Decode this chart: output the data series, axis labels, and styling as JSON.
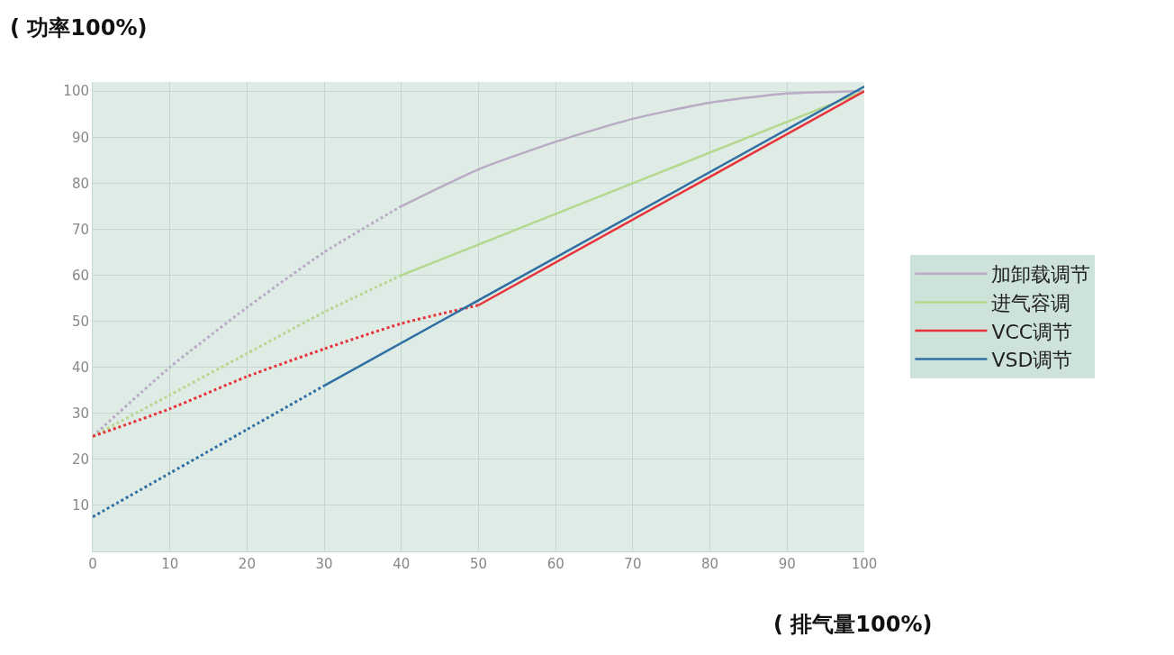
{
  "chart_data": {
    "type": "line",
    "xlabel": "( 排气量100%)",
    "ylabel": "( 功率100%)",
    "xlim": [
      0,
      100
    ],
    "ylim": [
      0,
      102
    ],
    "xticks": [
      0,
      10,
      20,
      30,
      40,
      50,
      60,
      70,
      80,
      90,
      100
    ],
    "yticks": [
      10,
      20,
      30,
      40,
      50,
      60,
      70,
      80,
      90,
      100
    ],
    "grid": true,
    "legend": "right",
    "marker": "none",
    "series": [
      {
        "color": "#b9abc6",
        "line_style": "dotted",
        "x": [
          0,
          10,
          20,
          30,
          40
        ],
        "values": [
          25,
          40,
          53,
          65,
          75
        ]
      },
      {
        "name": "加卸载调节",
        "color": "#b9abc6",
        "line_style": "solid",
        "x": [
          40,
          50,
          60,
          70,
          80,
          90,
          100
        ],
        "values": [
          75,
          83,
          89,
          94,
          97.5,
          99.5,
          100
        ]
      },
      {
        "color": "#b5d88f",
        "line_style": "dotted",
        "x": [
          0,
          10,
          20,
          30,
          40
        ],
        "values": [
          25,
          34,
          43,
          52,
          60
        ]
      },
      {
        "name": "进气容调",
        "color": "#b5d88f",
        "line_style": "solid",
        "x": [
          40,
          70,
          100
        ],
        "values": [
          60,
          80,
          100
        ]
      },
      {
        "color": "#e8333a",
        "line_style": "dotted",
        "x": [
          0,
          10,
          20,
          30,
          40,
          50
        ],
        "values": [
          25,
          31,
          38,
          44,
          49.5,
          53.5
        ]
      },
      {
        "name": "VCC调节",
        "color": "#e8333a",
        "line_style": "solid",
        "x": [
          50,
          100
        ],
        "values": [
          53.5,
          100
        ]
      },
      {
        "color": "#2f6fa3",
        "line_style": "dotted",
        "x": [
          0,
          10,
          20,
          30
        ],
        "values": [
          7.5,
          17,
          26.5,
          36
        ]
      },
      {
        "name": "VSD调节",
        "color": "#2f6fa3",
        "line_style": "solid",
        "x": [
          30,
          100
        ],
        "values": [
          36,
          101
        ]
      }
    ]
  }
}
